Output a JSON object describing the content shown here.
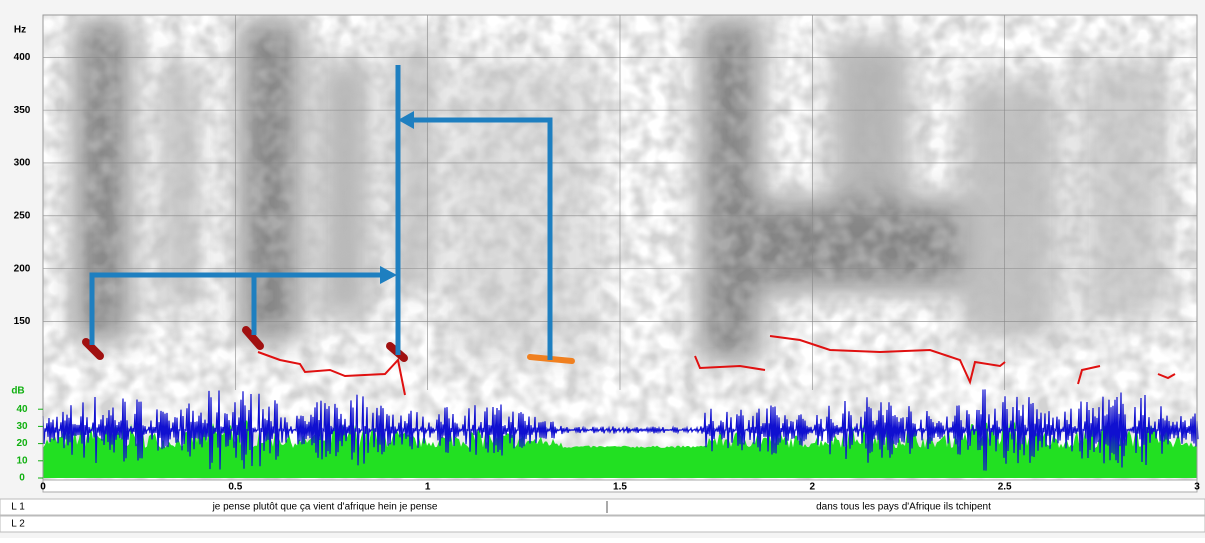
{
  "spectrogram": {
    "hz_label": "Hz",
    "hz_range": [
      0,
      440
    ],
    "hz_ticks": [
      150,
      200,
      250,
      300,
      350,
      400
    ],
    "db_label": "dB",
    "db_range": [
      0,
      50
    ],
    "db_ticks": [
      0,
      10,
      20,
      30,
      40
    ],
    "time_range": [
      0,
      3
    ],
    "time_ticks": [
      0,
      0.5,
      1,
      1.5,
      2,
      2.5,
      3
    ]
  },
  "tiers": [
    {
      "label": "L 1",
      "intervals": [
        "je pense plutôt que ça vient d'afrique hein je pense",
        "dans tous les pays d'Afrique ils tchipent"
      ]
    },
    {
      "label": "L 2"
    }
  ]
}
